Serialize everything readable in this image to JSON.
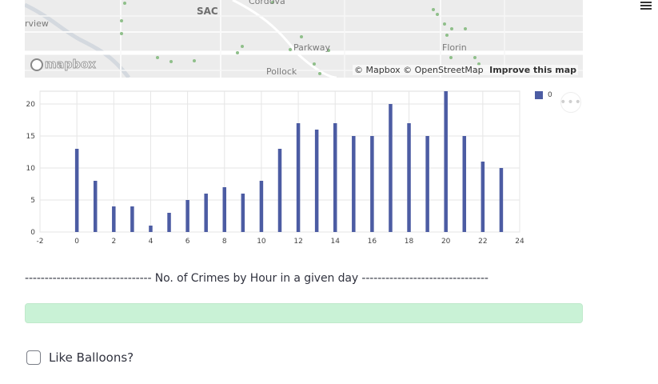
{
  "map": {
    "labels": {
      "sac": "SAC",
      "cordova": "Cordova",
      "riverview": "rview",
      "parkway": "Parkway",
      "florin": "Florin",
      "pollock": "Pollock"
    },
    "logo_text": "mapbox",
    "attribution": {
      "mapbox": "© Mapbox",
      "osm": "© OpenStreetMap",
      "improve": "Improve this map"
    }
  },
  "chart_data": {
    "type": "bar",
    "x": [
      0,
      1,
      2,
      3,
      4,
      5,
      6,
      7,
      8,
      9,
      10,
      11,
      12,
      13,
      14,
      15,
      16,
      17,
      18,
      19,
      20,
      21,
      22,
      23
    ],
    "series": [
      {
        "name": "0",
        "values": [
          13,
          8,
          4,
          4,
          1,
          3,
          5,
          6,
          7,
          6,
          8,
          13,
          17,
          16,
          17,
          15,
          15,
          20,
          17,
          15,
          22,
          15,
          11,
          10
        ]
      }
    ],
    "xlim": [
      -2,
      24
    ],
    "ylim": [
      0,
      22
    ],
    "xticks": [
      "-2",
      "0",
      "2",
      "4",
      "6",
      "8",
      "10",
      "12",
      "14",
      "16",
      "18",
      "20",
      "22",
      "24"
    ],
    "yticks": [
      "0",
      "5",
      "10",
      "15",
      "20"
    ],
    "grid": true,
    "legend_position": "top-right",
    "color": "#4c5ca3"
  },
  "chart_ui": {
    "legend_label": "0",
    "more_icon": "more-horizontal-icon",
    "more_glyph": "•••"
  },
  "caption": "-------------------------------- No. of Crimes by Hour in a given day --------------------------------",
  "progress": {
    "value": 1.0,
    "color": "#d6f5df"
  },
  "checkbox": {
    "label": "Like Balloons?",
    "checked": false
  },
  "menu_icon": "hamburger-menu-icon"
}
